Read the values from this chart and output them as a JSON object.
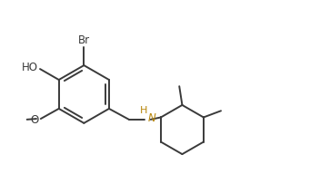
{
  "bg_color": "#ffffff",
  "line_color": "#3a3a3a",
  "text_color": "#3a3a3a",
  "nh_color": "#b8860b",
  "bond_lw": 1.4,
  "font_size": 8.5,
  "figsize": [
    3.52,
    1.92
  ],
  "dpi": 100,
  "xlim": [
    0.0,
    8.8
  ],
  "ylim": [
    0.8,
    4.8
  ]
}
